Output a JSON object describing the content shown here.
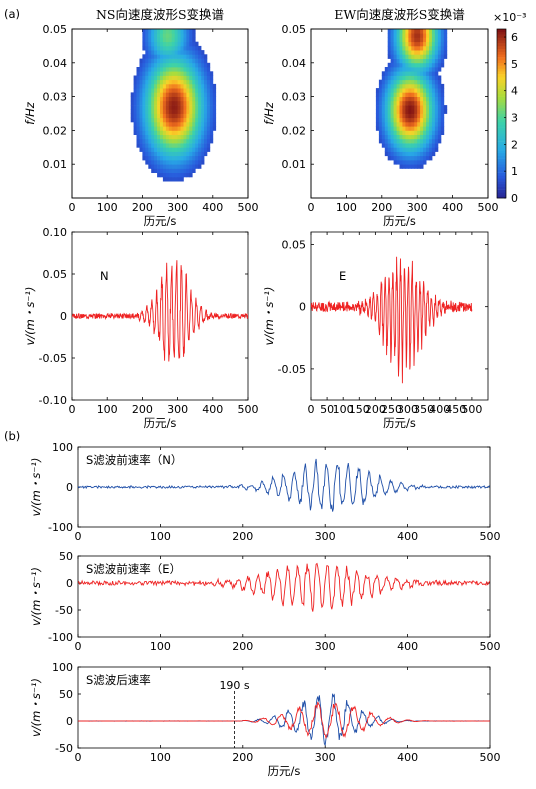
{
  "panel_a_label": "(a)",
  "panel_b_label": "(b)",
  "chart_data": [
    {
      "type": "heatmap",
      "title": "NS向速度波形S变换谱",
      "xlabel": "历元/s",
      "ylabel": "f/Hz",
      "xlim": [
        0,
        500
      ],
      "ylim": [
        0,
        0.05
      ],
      "xticks": [
        "0",
        "100",
        "200",
        "300",
        "400",
        "500"
      ],
      "yticks": [
        "0.01",
        "0.02",
        "0.03",
        "0.04",
        "0.05"
      ],
      "blobs": [
        {
          "x": 290,
          "y": 0.027,
          "sx": 55,
          "sy": 0.01,
          "amp": 6.2
        },
        {
          "x": 272,
          "y": 0.048,
          "sx": 40,
          "sy": 0.006,
          "amp": 3.2
        }
      ]
    },
    {
      "type": "heatmap",
      "title": "EW向速度波形S变换谱",
      "xlabel": "历元/s",
      "ylabel": "f/Hz",
      "xlim": [
        0,
        500
      ],
      "ylim": [
        0,
        0.05
      ],
      "xticks": [
        "0",
        "100",
        "200",
        "300",
        "400",
        "500"
      ],
      "yticks": [
        "0.01",
        "0.02",
        "0.03",
        "0.04",
        "0.05"
      ],
      "colorbar": {
        "exponent": "×10⁻³",
        "ticks": [
          "0",
          "1",
          "2",
          "3",
          "4",
          "5",
          "6"
        ],
        "range": [
          0,
          6.3
        ]
      },
      "blobs": [
        {
          "x": 280,
          "y": 0.026,
          "sx": 45,
          "sy": 0.008,
          "amp": 6.3
        },
        {
          "x": 300,
          "y": 0.048,
          "sx": 40,
          "sy": 0.007,
          "amp": 6.0
        }
      ]
    },
    {
      "type": "line",
      "annotation": "N",
      "xlabel": "历元/s",
      "ylabel": "v/(m・s⁻¹)",
      "xlim": [
        0,
        500
      ],
      "ylim": [
        -0.1,
        0.1
      ],
      "xticks": [
        "0",
        "100",
        "200",
        "300",
        "400",
        "500"
      ],
      "yticks": [
        "-0.10",
        "-0.05",
        "0",
        "0.05",
        "0.10"
      ],
      "color": "#ee2222",
      "signal": {
        "seed": 3,
        "x_end": 500,
        "peak_x": 290,
        "peak_amp": 0.078,
        "min_amp": -0.072,
        "noise": 0.003,
        "env_width": 40,
        "period": 14
      }
    },
    {
      "type": "line",
      "annotation": "E",
      "xlabel": "历元/s",
      "ylabel": "v/(m・s⁻¹)",
      "xlim": [
        0,
        550
      ],
      "ylim": [
        -0.075,
        0.06
      ],
      "xticks": [
        "0",
        "50",
        "100",
        "150",
        "200",
        "250",
        "300",
        "350",
        "400",
        "450",
        "500"
      ],
      "yticks": [
        "-0.05",
        "0",
        "0.05"
      ],
      "color": "#ee2222",
      "signal": {
        "seed": 7,
        "x_end": 500,
        "peak_x": 285,
        "peak_amp": 0.042,
        "min_amp": -0.063,
        "noise": 0.004,
        "env_width": 55,
        "period": 12
      }
    },
    {
      "type": "line",
      "annotation": "S滤波前速率（N）",
      "ylabel": "v/(m・s⁻¹)",
      "xlim": [
        0,
        500
      ],
      "ylim": [
        -100,
        100
      ],
      "xticks": [
        "0",
        "100",
        "200",
        "300",
        "400",
        "500"
      ],
      "yticks": [
        "-100",
        "0",
        "100"
      ],
      "color": "#1f4fa8",
      "signal": {
        "seed": 11,
        "x_end": 500,
        "peak_x": 305,
        "peak_amp": 78,
        "min_amp": -72,
        "noise": 3,
        "env_width": 45,
        "period": 13
      }
    },
    {
      "type": "line",
      "annotation": "S滤波前速率（E）",
      "ylabel": "v/(m・s⁻¹)",
      "xlim": [
        0,
        500
      ],
      "ylim": [
        -100,
        50
      ],
      "xticks": [
        "0",
        "100",
        "200",
        "300",
        "400",
        "500"
      ],
      "yticks": [
        "-100",
        "-50",
        "0",
        "50"
      ],
      "color": "#ee2222",
      "signal": {
        "seed": 19,
        "x_end": 500,
        "peak_x": 290,
        "peak_amp": 40,
        "min_amp": -60,
        "noise": 4,
        "env_width": 55,
        "period": 12
      }
    },
    {
      "type": "line",
      "annotation": "S滤波后速率",
      "xlabel": "历元/s",
      "ylabel": "v/(m・s⁻¹)",
      "xlim": [
        0,
        500
      ],
      "ylim": [
        -50,
        100
      ],
      "xticks": [
        "0",
        "100",
        "200",
        "300",
        "400",
        "500"
      ],
      "yticks": [
        "-50",
        "0",
        "50",
        "100"
      ],
      "marker": {
        "x": 190,
        "label": "190 s"
      },
      "series": [
        {
          "color": "#1f4fa8",
          "signal": {
            "seed": 23,
            "x_end": 500,
            "peak_x": 300,
            "peak_amp": 55,
            "min_amp": -45,
            "noise": 0.3,
            "env_width": 35,
            "period": 18,
            "start": 200
          }
        },
        {
          "color": "#ee2222",
          "signal": {
            "seed": 29,
            "x_end": 500,
            "peak_x": 305,
            "peak_amp": 42,
            "min_amp": -35,
            "noise": 0.3,
            "env_width": 40,
            "period": 22,
            "start": 200
          }
        }
      ]
    }
  ]
}
